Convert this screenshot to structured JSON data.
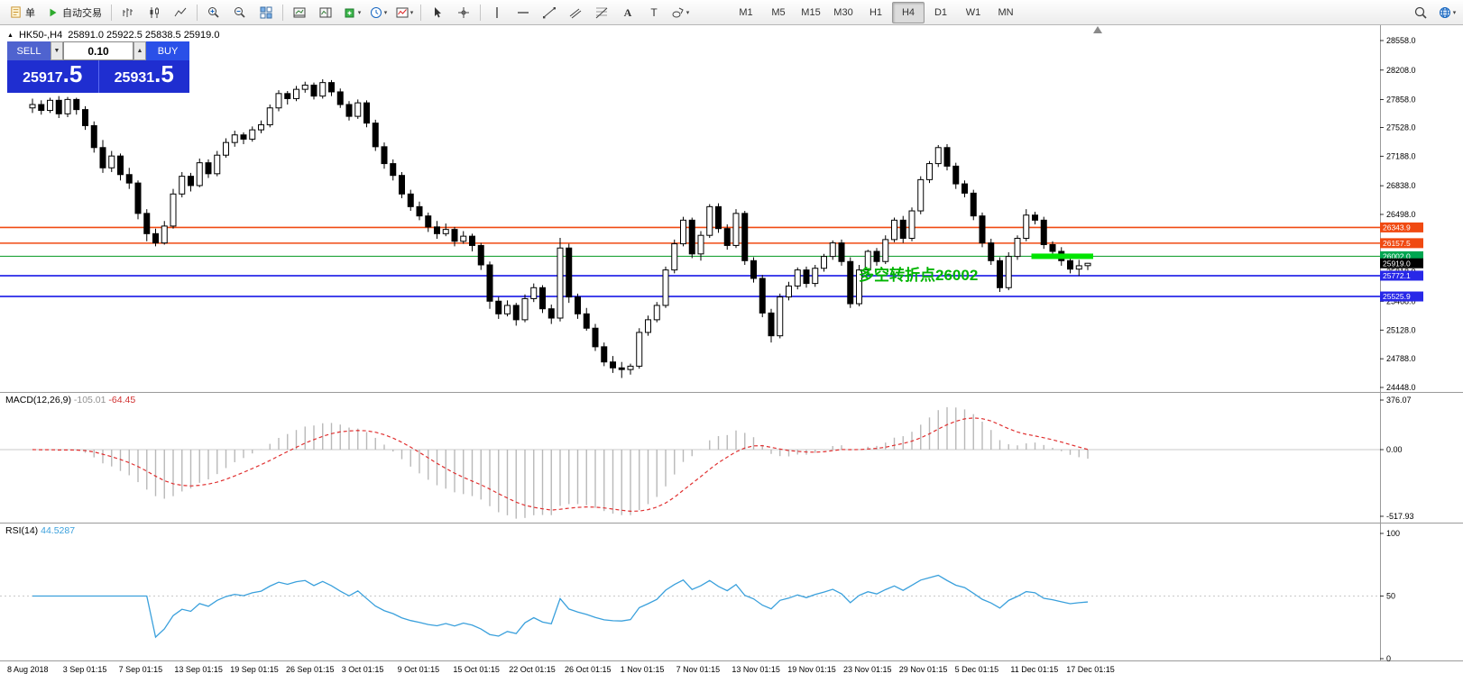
{
  "toolbar": {
    "order_label": "单",
    "autotrade_label": "自动交易",
    "timeframes": [
      "M1",
      "M5",
      "M15",
      "M30",
      "H1",
      "H4",
      "D1",
      "W1",
      "MN"
    ],
    "active_timeframe": "H4",
    "icon_names": [
      "new-order-icon",
      "autotrading-icon",
      "bar-chart-icon",
      "candlestick-chart-icon",
      "line-chart-icon",
      "zoom-in-icon",
      "zoom-out-icon",
      "tile-windows-icon",
      "arrange-charts-icon",
      "arrange-vertical-icon",
      "new-chart-icon",
      "periods-icon",
      "template-icon",
      "cursor-icon",
      "crosshair-icon",
      "vertical-line-icon",
      "horizontal-line-icon",
      "trendline-icon",
      "channel-icon",
      "fibonacci-icon",
      "text-icon",
      "label-icon",
      "shapes-icon",
      "search-icon",
      "community-icon"
    ]
  },
  "chart": {
    "header": {
      "symbol_period": "HK50-,H4",
      "ohlc_text": "25891.0 25922.5 25838.5 25919.0"
    },
    "trade_panel": {
      "sell_label": "SELL",
      "buy_label": "BUY",
      "volume": "0.10",
      "sell_price_main": "25917",
      "sell_price_big": ".5",
      "buy_price_main": "25931",
      "buy_price_big": ".5"
    },
    "annotation": "多空转折点26002",
    "price_axis": {
      "ticks": [
        "28558.0",
        "28208.0",
        "27858.0",
        "27528.0",
        "27188.0",
        "26838.0",
        "26498.0",
        "26158.0",
        "25818.0",
        "25468.0",
        "25128.0",
        "24788.0",
        "24448.0"
      ]
    },
    "lines": [
      {
        "price": 26343.9,
        "color": "#f04a12",
        "width": 1.6
      },
      {
        "price": 26157.5,
        "color": "#f04a12",
        "width": 1.6
      },
      {
        "price": 26002.0,
        "color": "#1fa33a",
        "width": 1.2
      },
      {
        "price": 25772.1,
        "color": "#2828e8",
        "width": 1.8
      },
      {
        "price": 25525.9,
        "color": "#2828e8",
        "width": 1.8
      }
    ],
    "highlight_segment": {
      "price": 26002.0,
      "color": "#00e400",
      "from_candle": 114,
      "to_candle": 120
    },
    "tags": [
      {
        "text": "26343.9",
        "color": "#f04a12"
      },
      {
        "text": "26157.5",
        "color": "#f04a12"
      },
      {
        "text": "26002.0",
        "color": "#00a651"
      },
      {
        "text": "25919.0",
        "color": "#000000"
      },
      {
        "text": "25772.1",
        "color": "#2828e8"
      },
      {
        "text": "25525.9",
        "color": "#2828e8"
      }
    ]
  },
  "chart_data": {
    "type": "candlestick",
    "symbol": "HK50-",
    "period": "H4",
    "ylim": [
      24448,
      28558
    ],
    "candles": [
      [
        27760,
        27870,
        27700,
        27800
      ],
      [
        27800,
        27850,
        27680,
        27730
      ],
      [
        27730,
        27880,
        27700,
        27850
      ],
      [
        27850,
        27900,
        27640,
        27690
      ],
      [
        27690,
        27890,
        27650,
        27860
      ],
      [
        27860,
        27880,
        27680,
        27740
      ],
      [
        27740,
        27780,
        27500,
        27550
      ],
      [
        27550,
        27600,
        27230,
        27290
      ],
      [
        27290,
        27380,
        26990,
        27050
      ],
      [
        27050,
        27250,
        27000,
        27190
      ],
      [
        27190,
        27220,
        26900,
        26970
      ],
      [
        26970,
        27050,
        26800,
        26870
      ],
      [
        26870,
        26900,
        26440,
        26510
      ],
      [
        26510,
        26560,
        26180,
        26270
      ],
      [
        26270,
        26330,
        26120,
        26160
      ],
      [
        26160,
        26420,
        26140,
        26360
      ],
      [
        26360,
        26800,
        26330,
        26740
      ],
      [
        26740,
        27000,
        26700,
        26950
      ],
      [
        26950,
        26990,
        26770,
        26840
      ],
      [
        26840,
        27160,
        26820,
        27110
      ],
      [
        27110,
        27150,
        26930,
        26980
      ],
      [
        26980,
        27250,
        26950,
        27200
      ],
      [
        27200,
        27400,
        27170,
        27350
      ],
      [
        27350,
        27490,
        27300,
        27440
      ],
      [
        27440,
        27470,
        27330,
        27390
      ],
      [
        27390,
        27540,
        27360,
        27500
      ],
      [
        27500,
        27610,
        27460,
        27560
      ],
      [
        27560,
        27800,
        27530,
        27760
      ],
      [
        27760,
        27970,
        27720,
        27930
      ],
      [
        27930,
        27960,
        27800,
        27870
      ],
      [
        27870,
        28020,
        27840,
        27980
      ],
      [
        27980,
        28070,
        27940,
        28030
      ],
      [
        28030,
        28060,
        27860,
        27900
      ],
      [
        27900,
        28100,
        27870,
        28060
      ],
      [
        28060,
        28090,
        27900,
        27950
      ],
      [
        27950,
        27990,
        27760,
        27800
      ],
      [
        27800,
        27840,
        27610,
        27660
      ],
      [
        27660,
        27860,
        27630,
        27820
      ],
      [
        27820,
        27850,
        27530,
        27580
      ],
      [
        27580,
        27620,
        27250,
        27300
      ],
      [
        27300,
        27350,
        27040,
        27100
      ],
      [
        27100,
        27150,
        26900,
        26960
      ],
      [
        26960,
        27000,
        26690,
        26740
      ],
      [
        26740,
        26790,
        26540,
        26590
      ],
      [
        26590,
        26650,
        26430,
        26480
      ],
      [
        26480,
        26520,
        26290,
        26350
      ],
      [
        26350,
        26420,
        26210,
        26270
      ],
      [
        26270,
        26390,
        26240,
        26320
      ],
      [
        26320,
        26350,
        26120,
        26180
      ],
      [
        26180,
        26300,
        26150,
        26240
      ],
      [
        26240,
        26270,
        26060,
        26130
      ],
      [
        26130,
        26160,
        25840,
        25900
      ],
      [
        25900,
        25940,
        25380,
        25470
      ],
      [
        25470,
        25520,
        25260,
        25320
      ],
      [
        25320,
        25480,
        25290,
        25420
      ],
      [
        25420,
        25450,
        25180,
        25250
      ],
      [
        25250,
        25550,
        25220,
        25500
      ],
      [
        25500,
        25680,
        25460,
        25630
      ],
      [
        25630,
        25660,
        25330,
        25380
      ],
      [
        25380,
        25430,
        25200,
        25270
      ],
      [
        25270,
        26220,
        25230,
        26100
      ],
      [
        26100,
        26150,
        25450,
        25520
      ],
      [
        25520,
        25560,
        25260,
        25320
      ],
      [
        25320,
        25390,
        25120,
        25150
      ],
      [
        25150,
        25200,
        24880,
        24930
      ],
      [
        24930,
        24980,
        24700,
        24750
      ],
      [
        24750,
        24820,
        24620,
        24680
      ],
      [
        24680,
        24750,
        24560,
        24660
      ],
      [
        24660,
        24730,
        24600,
        24700
      ],
      [
        24700,
        25150,
        24670,
        25100
      ],
      [
        25100,
        25300,
        25060,
        25250
      ],
      [
        25250,
        25460,
        25220,
        25420
      ],
      [
        25420,
        25880,
        25390,
        25840
      ],
      [
        25840,
        26200,
        25800,
        26150
      ],
      [
        26150,
        26470,
        26120,
        26430
      ],
      [
        26430,
        26460,
        25980,
        26030
      ],
      [
        26030,
        26300,
        25950,
        26250
      ],
      [
        26250,
        26620,
        26220,
        26590
      ],
      [
        26590,
        26630,
        26280,
        26330
      ],
      [
        26330,
        26380,
        26080,
        26130
      ],
      [
        26130,
        26560,
        26100,
        26510
      ],
      [
        26510,
        26540,
        25900,
        25950
      ],
      [
        25950,
        25990,
        25690,
        25740
      ],
      [
        25740,
        25780,
        25280,
        25330
      ],
      [
        25330,
        25380,
        24980,
        25060
      ],
      [
        25060,
        25560,
        25030,
        25520
      ],
      [
        25520,
        25700,
        25480,
        25650
      ],
      [
        25650,
        25870,
        25610,
        25840
      ],
      [
        25840,
        25880,
        25630,
        25680
      ],
      [
        25680,
        25900,
        25640,
        25860
      ],
      [
        25860,
        26030,
        25820,
        26000
      ],
      [
        26000,
        26190,
        25960,
        26160
      ],
      [
        26160,
        26200,
        25890,
        25940
      ],
      [
        25940,
        25990,
        25390,
        25440
      ],
      [
        25440,
        25900,
        25410,
        25840
      ],
      [
        25840,
        26080,
        25800,
        26060
      ],
      [
        26060,
        26100,
        25890,
        25940
      ],
      [
        25940,
        26250,
        25910,
        26200
      ],
      [
        26200,
        26460,
        26170,
        26430
      ],
      [
        26430,
        26480,
        26160,
        26215
      ],
      [
        26215,
        26580,
        26180,
        26540
      ],
      [
        26540,
        26950,
        26500,
        26910
      ],
      [
        26910,
        27130,
        26870,
        27100
      ],
      [
        27100,
        27320,
        27060,
        27290
      ],
      [
        27290,
        27330,
        27020,
        27070
      ],
      [
        27070,
        27110,
        26800,
        26860
      ],
      [
        26860,
        26900,
        26700,
        26750
      ],
      [
        26750,
        26790,
        26430,
        26480
      ],
      [
        26480,
        26520,
        26110,
        26160
      ],
      [
        26160,
        26210,
        25900,
        25950
      ],
      [
        25950,
        25990,
        25580,
        25630
      ],
      [
        25630,
        26050,
        25600,
        26000
      ],
      [
        26000,
        26250,
        25960,
        26215
      ],
      [
        26215,
        26560,
        26180,
        26490
      ],
      [
        26490,
        26530,
        26380,
        26430
      ],
      [
        26430,
        26470,
        26090,
        26140
      ],
      [
        26140,
        26180,
        25990,
        26060
      ],
      [
        26060,
        26110,
        25890,
        25950
      ],
      [
        25950,
        26000,
        25800,
        25850
      ],
      [
        25850,
        25960,
        25770,
        25890
      ],
      [
        25891,
        25922.5,
        25838.5,
        25919
      ]
    ],
    "macd": {
      "label": "MACD(12,26,9)",
      "value1": "-105.01",
      "value2": "-64.45",
      "scale_max": "376.07",
      "scale_zero": "0.00",
      "scale_min": "-517.93"
    },
    "rsi": {
      "label": "RSI(14)",
      "value": "44.5287",
      "scale": [
        "100",
        "50",
        "0"
      ]
    },
    "x_labels": [
      "8 Aug 2018",
      "3 Sep 01:15",
      "7 Sep 01:15",
      "13 Sep 01:15",
      "19 Sep 01:15",
      "26 Sep 01:15",
      "3 Oct 01:15",
      "9 Oct 01:15",
      "15 Oct 01:15",
      "22 Oct 01:15",
      "26 Oct 01:15",
      "1 Nov 01:15",
      "7 Nov 01:15",
      "13 Nov 01:15",
      "19 Nov 01:15",
      "23 Nov 01:15",
      "29 Nov 01:15",
      "5 Dec 01:15",
      "11 Dec 01:15",
      "17 Dec 01:15"
    ]
  }
}
